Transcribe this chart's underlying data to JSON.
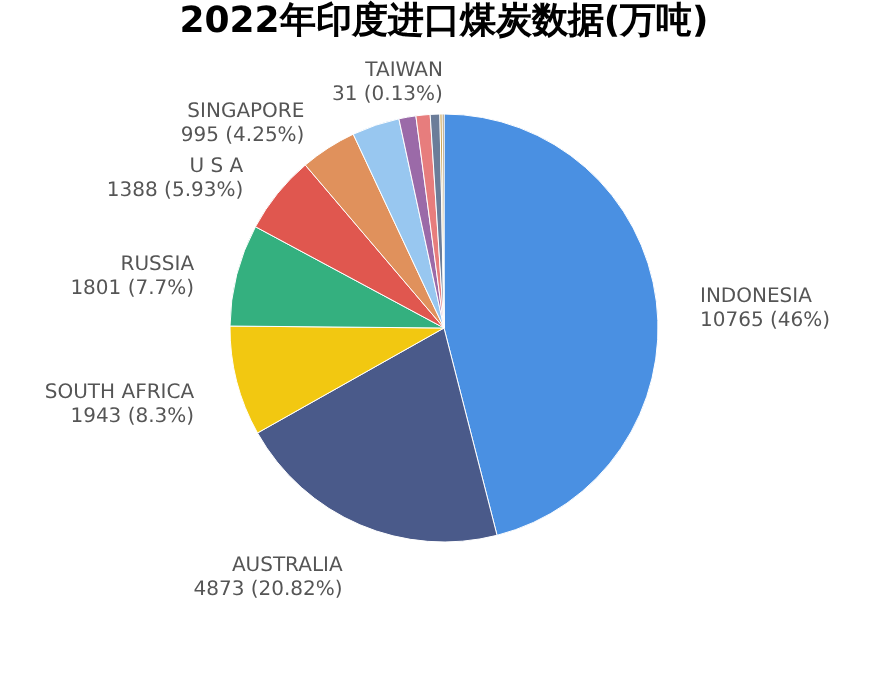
{
  "chart_data": {
    "type": "pie",
    "title": "2022年印度进口煤炭数据(万吨)",
    "categories": [
      "INDONESIA",
      "AUSTRALIA",
      "SOUTH AFRICA",
      "RUSSIA",
      "U S A",
      "SINGAPORE",
      null,
      null,
      null,
      null,
      null,
      "TAIWAN"
    ],
    "values": [
      10765,
      4873,
      1943,
      1801,
      1388,
      995,
      840,
      300,
      250,
      170,
      40,
      31
    ],
    "colors": [
      "#4a90e2",
      "#4a5a8a",
      "#f2c811",
      "#34b07f",
      "#e0574f",
      "#e0915c",
      "#98c7f0",
      "#9b6aa8",
      "#e77d7d",
      "#6b7d99",
      "#c7a04b",
      "#8a6d3b"
    ],
    "value_labels": [
      "10765 (46%)",
      "4873 (20.82%)",
      "1943 (8.3%)",
      "1801 (7.7%)",
      "1388 (5.93%)",
      "995 (4.25%)",
      null,
      null,
      null,
      null,
      null,
      "31 (0.13%)"
    ],
    "legend": false
  }
}
